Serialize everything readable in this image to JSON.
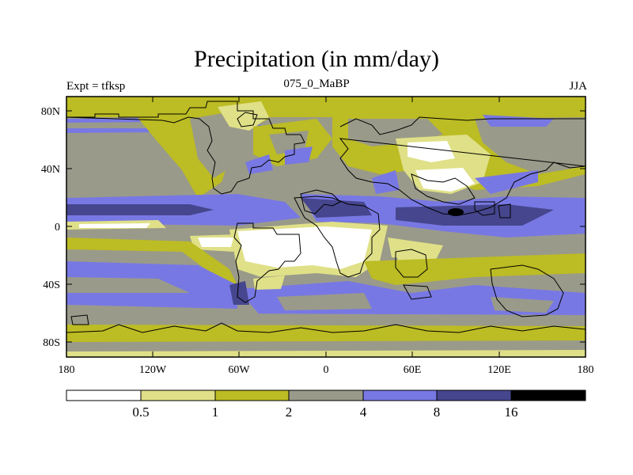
{
  "figure": {
    "title": "Precipitation (in mm/day)",
    "experiment": "Expt = tfksp",
    "period": "075_0_MaBP",
    "season": "JJA"
  },
  "axes": {
    "x_ticks": [
      "180",
      "120W",
      "60W",
      "0",
      "60E",
      "120E",
      "180"
    ],
    "y_ticks": [
      "80N",
      "40N",
      "0",
      "40S",
      "80S"
    ]
  },
  "colorbar": {
    "levels": [
      "0.5",
      "1",
      "2",
      "4",
      "8",
      "16"
    ],
    "colors": [
      "#ffffff",
      "#e0e088",
      "#bcbc24",
      "#9a9a8a",
      "#7878e4",
      "#46468e",
      "#000000"
    ]
  },
  "palette": {
    "very_low": "#ffffff",
    "low": "#e0e088",
    "mid_low": "#bcbc24",
    "mid": "#9a9a8a",
    "high": "#7878e4",
    "very_high": "#46468e",
    "extreme": "#000000"
  }
}
